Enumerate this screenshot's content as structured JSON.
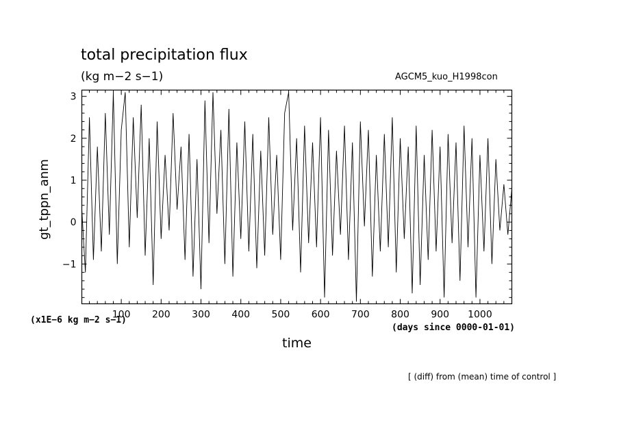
{
  "chart_data": {
    "type": "line",
    "title": "total precipitation flux",
    "units": "(kg m−2 s−1)",
    "run_name": "AGCM5_kuo_H1998con",
    "ylabel": "gt_tppn_anm",
    "xlabel": "time",
    "y_scale_label": "(x1E−6 kg m−2 s−1)",
    "x_units_label": "(days since 0000-01-01)",
    "footnote": "[ (diff) from (mean) time of control ]",
    "xlim": [
      1,
      1080
    ],
    "ylim": [
      -1.95,
      3.15
    ],
    "x_ticks": [
      100,
      200,
      300,
      400,
      500,
      600,
      700,
      800,
      900,
      1000
    ],
    "x_tick_labels": [
      "100",
      "200",
      "300",
      "400",
      "500",
      "600",
      "700",
      "800",
      "900",
      "1000"
    ],
    "y_ticks": [
      -1,
      0,
      1,
      2,
      3
    ],
    "y_tick_labels": [
      "−1",
      "0",
      "1",
      "2",
      "3"
    ],
    "line_color": "#000000",
    "grid": false,
    "series": [
      {
        "x": [
          1,
          10,
          20,
          30,
          40,
          50,
          60,
          70,
          80,
          90,
          100,
          110,
          120,
          130,
          140,
          150,
          160,
          170,
          180,
          190,
          200,
          210,
          220,
          230,
          240,
          250,
          260,
          270,
          280,
          290,
          300,
          310,
          320,
          330,
          340,
          350,
          360,
          370,
          380,
          390,
          400,
          410,
          420,
          430,
          440,
          450,
          460,
          470,
          480,
          490,
          500,
          510,
          520,
          530,
          540,
          550,
          560,
          570,
          580,
          590,
          600,
          610,
          620,
          630,
          640,
          650,
          660,
          670,
          680,
          690,
          700,
          710,
          720,
          730,
          740,
          750,
          760,
          770,
          780,
          790,
          800,
          810,
          820,
          830,
          840,
          850,
          860,
          870,
          880,
          890,
          900,
          910,
          920,
          930,
          940,
          950,
          960,
          970,
          980,
          990,
          1000,
          1010,
          1020,
          1030,
          1040,
          1050,
          1060,
          1070,
          1080
        ],
        "y": [
          0.3,
          -1.2,
          2.5,
          -0.9,
          1.8,
          -0.7,
          2.6,
          -0.3,
          3.1,
          -1.0,
          2.2,
          3.1,
          -0.6,
          2.5,
          0.1,
          2.8,
          -0.8,
          2.0,
          -1.5,
          2.4,
          -0.4,
          1.6,
          -0.2,
          2.6,
          0.3,
          1.8,
          -0.9,
          2.1,
          -1.3,
          1.5,
          -1.6,
          2.9,
          -0.5,
          3.1,
          0.2,
          2.2,
          -1.0,
          2.7,
          -1.3,
          1.9,
          -0.4,
          2.4,
          -0.7,
          2.1,
          -1.1,
          1.7,
          -0.8,
          2.5,
          -0.3,
          1.6,
          -0.9,
          2.6,
          3.1,
          -0.2,
          2.0,
          -1.2,
          2.3,
          -0.5,
          1.9,
          -0.6,
          2.5,
          -1.8,
          2.2,
          -0.8,
          1.7,
          -0.3,
          2.3,
          -0.9,
          1.9,
          -1.9,
          2.4,
          -0.1,
          2.2,
          -1.3,
          1.6,
          -0.7,
          2.1,
          -0.6,
          2.5,
          -1.2,
          2.0,
          -0.4,
          1.8,
          -1.7,
          2.3,
          -1.5,
          1.6,
          -0.9,
          2.2,
          -0.7,
          1.8,
          -1.8,
          2.1,
          -0.5,
          1.9,
          -1.4,
          2.3,
          -0.6,
          2.0,
          -1.8,
          1.6,
          -0.7,
          2.0,
          -1.0,
          1.5,
          -0.2,
          0.9,
          -0.3,
          0.8
        ]
      }
    ]
  }
}
